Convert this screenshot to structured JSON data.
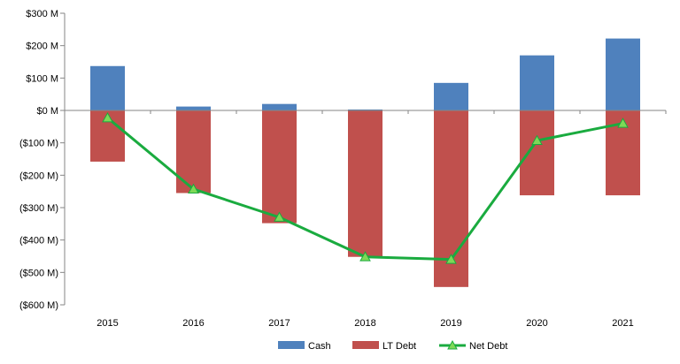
{
  "chart_data": {
    "type": "bar+line",
    "categories": [
      "2015",
      "2016",
      "2017",
      "2018",
      "2019",
      "2020",
      "2021"
    ],
    "series": [
      {
        "name": "Cash",
        "type": "bar",
        "color": "#4f81bd",
        "values": [
          137,
          12,
          20,
          3,
          85,
          170,
          222
        ]
      },
      {
        "name": "LT Debt",
        "type": "bar",
        "color": "#c0504d",
        "values": [
          -158,
          -255,
          -348,
          -452,
          -545,
          -262,
          -262
        ]
      },
      {
        "name": "Net Debt",
        "type": "line",
        "color": "#1aab3f",
        "marker": "triangle",
        "values": [
          -23,
          -243,
          -330,
          -452,
          -460,
          -93,
          -40
        ]
      }
    ],
    "y_ticks": [
      300,
      200,
      100,
      0,
      -100,
      -200,
      -300,
      -400,
      -500,
      -600
    ],
    "y_tick_labels": [
      "$300 M",
      "$200 M",
      "$100 M",
      "$0 M",
      "($100 M)",
      "($200 M)",
      "($300 M)",
      "($400 M)",
      "($500 M)",
      "($600 M)"
    ],
    "ylim": [
      -600,
      300
    ],
    "stacked": true,
    "grid": false,
    "legend_position": "bottom",
    "title": "",
    "xlabel": "",
    "ylabel": ""
  }
}
